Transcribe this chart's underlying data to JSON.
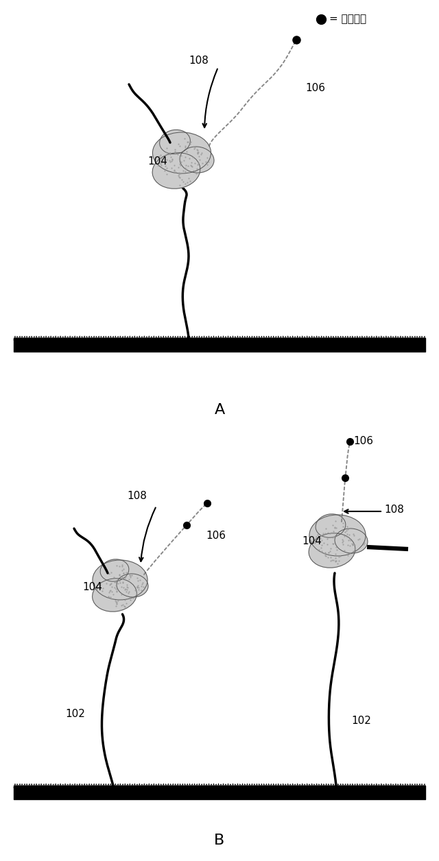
{
  "fig_width": 6.4,
  "fig_height": 12.56,
  "background_color": "#ffffff",
  "panel_A_label": "A",
  "panel_B_label": "B",
  "legend_text": "= 停止塩基",
  "label_102": "102",
  "label_104": "104",
  "label_106": "106",
  "label_108": "108"
}
